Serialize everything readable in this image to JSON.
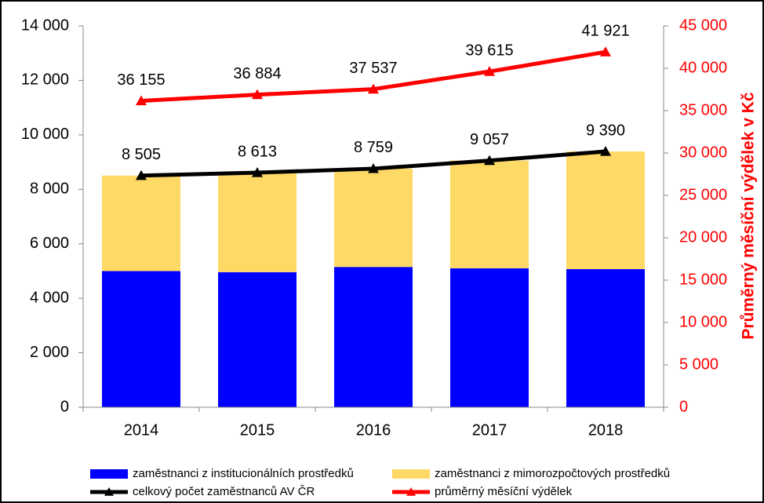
{
  "chart_data": {
    "type": "bar",
    "categories": [
      "2014",
      "2015",
      "2016",
      "2017",
      "2018"
    ],
    "series": [
      {
        "name": "zaměstnanci z institucionálních prostředků",
        "type": "bar",
        "color": "#0000ff",
        "values": [
          5000,
          4960,
          5150,
          5100,
          5070
        ]
      },
      {
        "name": "zaměstnanci z mimorozpočtových prostředků",
        "type": "bar",
        "color": "#ffd966",
        "values": [
          3505,
          3653,
          3609,
          3957,
          4320
        ]
      },
      {
        "name": "celkový počet zaměstnanců AV ČR",
        "type": "line",
        "color": "#000000",
        "values": [
          8505,
          8613,
          8759,
          9057,
          9390
        ],
        "value_labels": [
          "8 505",
          "8 613",
          "8 759",
          "9 057",
          "9 390"
        ]
      },
      {
        "name": "průměrný měsíční výdělek",
        "type": "line",
        "axis": "y2",
        "color": "#ff0000",
        "values": [
          36155,
          36884,
          37537,
          39615,
          41921
        ],
        "value_labels": [
          "36 155",
          "36 884",
          "37 537",
          "39 615",
          "41 921"
        ]
      }
    ],
    "ylim": [
      0,
      14000
    ],
    "yticks": [
      0,
      {
        "value": 2000,
        "label": "2 000"
      },
      {
        "value": 4000,
        "label": "4 000"
      },
      {
        "value": 6000,
        "label": "6 000"
      },
      {
        "value": 8000,
        "label": "8 000"
      },
      {
        "value": 10000,
        "label": "10 000"
      },
      {
        "value": 12000,
        "label": "12 000"
      },
      {
        "value": 14000,
        "label": "14 000"
      }
    ],
    "y2lim": [
      0,
      45000
    ],
    "y2ticks": [
      0,
      {
        "value": 5000,
        "label": "5 000"
      },
      {
        "value": 10000,
        "label": "10 000"
      },
      {
        "value": 15000,
        "label": "15 000"
      },
      {
        "value": 20000,
        "label": "20 000"
      },
      {
        "value": 25000,
        "label": "25 000"
      },
      {
        "value": 30000,
        "label": "30 000"
      },
      {
        "value": 35000,
        "label": "35 000"
      },
      {
        "value": 40000,
        "label": "40 000"
      },
      {
        "value": 45000,
        "label": "45 000"
      }
    ],
    "y2label": "Průměrný měsíční výdělek v Kč",
    "y2label_color": "#ff0000",
    "legend": "bottom"
  }
}
